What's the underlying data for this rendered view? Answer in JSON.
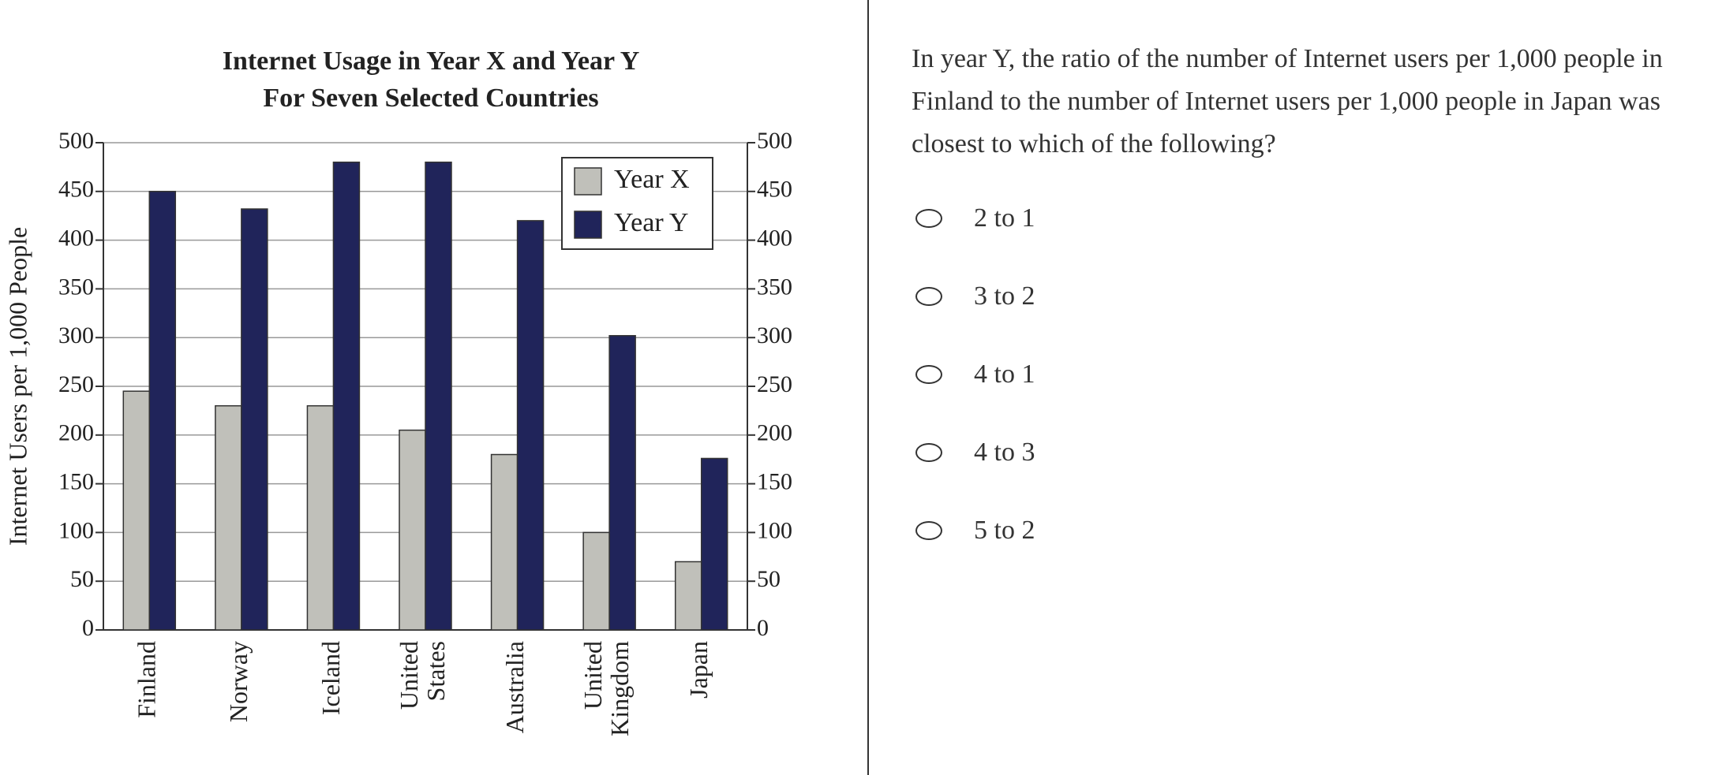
{
  "chart_data": {
    "type": "bar",
    "title": [
      "Internet Usage in Year X and Year Y",
      "For Seven Selected Countries"
    ],
    "y_label": "Internet Users per 1,000 People",
    "categories": [
      "Finland",
      "Norway",
      "Iceland",
      "United States",
      "Australia",
      "United Kingdom",
      "Japan"
    ],
    "series": [
      {
        "name": "Year X",
        "color": "#c0c0ba",
        "values": [
          245,
          230,
          230,
          205,
          180,
          100,
          70
        ]
      },
      {
        "name": "Year Y",
        "color": "#20245a",
        "values": [
          450,
          432,
          480,
          480,
          420,
          302,
          176
        ]
      }
    ],
    "ylim": [
      0,
      500
    ],
    "yticks": [
      0,
      50,
      100,
      150,
      200,
      250,
      300,
      350,
      400,
      450,
      500
    ],
    "grid": true,
    "legend": "upper right"
  },
  "question": {
    "text": "In year Y, the ratio of the number of Internet users per 1,000 people in Finland to the number of Internet users per 1,000 people in Japan was closest to which of the following?",
    "options": [
      "2 to 1",
      "3 to 2",
      "4 to 1",
      "4 to 3",
      "5 to 2"
    ]
  }
}
